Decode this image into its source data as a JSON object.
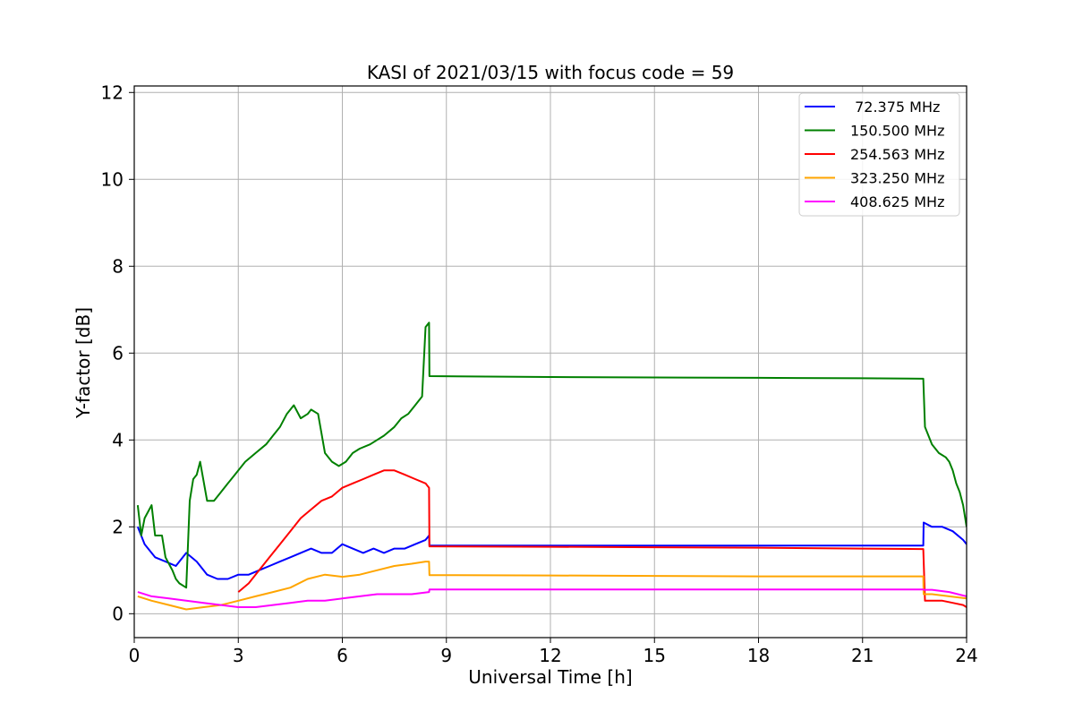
{
  "chart_data": {
    "type": "line",
    "title": "KASI of 2021/03/15 with focus code = 59",
    "xlabel": "Universal Time [h]",
    "ylabel": "Y-factor [dB]",
    "xlim": [
      0,
      24
    ],
    "ylim": [
      -0.55,
      12.15
    ],
    "xticks": [
      0,
      3,
      6,
      9,
      12,
      15,
      18,
      21,
      24
    ],
    "yticks": [
      0,
      2,
      4,
      6,
      8,
      10,
      12
    ],
    "grid": true,
    "legend_position": "top-right",
    "series": [
      {
        "name": " 72.375 MHz",
        "color": "#0000ff",
        "x": [
          0.1,
          0.3,
          0.6,
          0.9,
          1.2,
          1.5,
          1.8,
          2.1,
          2.4,
          2.7,
          3.0,
          3.3,
          3.6,
          3.9,
          4.2,
          4.5,
          4.8,
          5.1,
          5.4,
          5.7,
          6.0,
          6.3,
          6.6,
          6.9,
          7.2,
          7.5,
          7.8,
          8.1,
          8.4,
          8.5,
          8.51,
          12.0,
          15.0,
          18.0,
          21.0,
          22.75,
          22.76,
          23.0,
          23.3,
          23.6,
          23.9,
          24.0
        ],
        "y": [
          2.0,
          1.6,
          1.3,
          1.2,
          1.1,
          1.4,
          1.2,
          0.9,
          0.8,
          0.8,
          0.9,
          0.9,
          1.0,
          1.1,
          1.2,
          1.3,
          1.4,
          1.5,
          1.4,
          1.4,
          1.6,
          1.5,
          1.4,
          1.5,
          1.4,
          1.5,
          1.5,
          1.6,
          1.7,
          1.8,
          1.57,
          1.57,
          1.57,
          1.57,
          1.57,
          1.57,
          2.1,
          2.0,
          2.0,
          1.9,
          1.7,
          1.6
        ]
      },
      {
        "name": "150.500 MHz",
        "color": "#008000",
        "x": [
          0.1,
          0.2,
          0.3,
          0.5,
          0.6,
          0.8,
          0.9,
          1.1,
          1.2,
          1.3,
          1.5,
          1.6,
          1.7,
          1.8,
          1.9,
          2.1,
          2.2,
          2.3,
          2.5,
          2.7,
          2.9,
          3.0,
          3.2,
          3.5,
          3.8,
          4.0,
          4.2,
          4.4,
          4.6,
          4.8,
          5.0,
          5.1,
          5.3,
          5.5,
          5.7,
          5.9,
          6.1,
          6.3,
          6.5,
          6.8,
          7.0,
          7.2,
          7.5,
          7.7,
          7.9,
          8.1,
          8.3,
          8.4,
          8.5,
          8.51,
          12.0,
          15.0,
          18.0,
          21.0,
          22.7,
          22.75,
          22.8,
          23.0,
          23.2,
          23.4,
          23.5,
          23.6,
          23.7,
          23.8,
          23.9,
          24.0
        ],
        "y": [
          2.5,
          1.8,
          2.2,
          2.5,
          1.8,
          1.8,
          1.3,
          1.0,
          0.8,
          0.7,
          0.6,
          2.6,
          3.1,
          3.2,
          3.5,
          2.6,
          2.6,
          2.6,
          2.8,
          3.0,
          3.2,
          3.3,
          3.5,
          3.7,
          3.9,
          4.1,
          4.3,
          4.6,
          4.8,
          4.5,
          4.6,
          4.7,
          4.6,
          3.7,
          3.5,
          3.4,
          3.5,
          3.7,
          3.8,
          3.9,
          4.0,
          4.1,
          4.3,
          4.5,
          4.6,
          4.8,
          5.0,
          6.6,
          6.7,
          5.47,
          5.45,
          5.44,
          5.43,
          5.42,
          5.41,
          5.41,
          4.3,
          3.9,
          3.7,
          3.6,
          3.5,
          3.3,
          3.0,
          2.8,
          2.5,
          2.0
        ]
      },
      {
        "name": "254.563 MHz",
        "color": "#ff0000",
        "x": [
          3.0,
          3.3,
          3.6,
          3.9,
          4.2,
          4.5,
          4.8,
          5.1,
          5.4,
          5.7,
          6.0,
          6.3,
          6.6,
          6.9,
          7.2,
          7.5,
          7.8,
          8.1,
          8.4,
          8.5,
          8.51,
          12.0,
          15.0,
          18.0,
          21.0,
          22.7,
          22.75,
          22.8,
          23.0,
          23.3,
          23.6,
          23.9,
          24.0
        ],
        "y": [
          0.5,
          0.7,
          1.0,
          1.3,
          1.6,
          1.9,
          2.2,
          2.4,
          2.6,
          2.7,
          2.9,
          3.0,
          3.1,
          3.2,
          3.3,
          3.3,
          3.2,
          3.1,
          3.0,
          2.9,
          1.55,
          1.54,
          1.53,
          1.52,
          1.5,
          1.49,
          1.49,
          0.3,
          0.3,
          0.3,
          0.25,
          0.2,
          0.15
        ]
      },
      {
        "name": "323.250 MHz",
        "color": "#ffa500",
        "x": [
          0.1,
          0.5,
          1.0,
          1.5,
          2.0,
          2.5,
          3.0,
          3.5,
          4.0,
          4.5,
          5.0,
          5.5,
          6.0,
          6.5,
          7.0,
          7.5,
          8.0,
          8.4,
          8.5,
          8.51,
          12.0,
          15.0,
          18.0,
          21.0,
          22.75,
          22.76,
          23.0,
          23.5,
          24.0
        ],
        "y": [
          0.4,
          0.3,
          0.2,
          0.1,
          0.15,
          0.2,
          0.3,
          0.4,
          0.5,
          0.6,
          0.8,
          0.9,
          0.85,
          0.9,
          1.0,
          1.1,
          1.15,
          1.2,
          1.2,
          0.89,
          0.88,
          0.87,
          0.86,
          0.86,
          0.86,
          0.45,
          0.45,
          0.4,
          0.35
        ]
      },
      {
        "name": "408.625 MHz",
        "color": "#ff00ff",
        "x": [
          0.1,
          0.5,
          1.0,
          1.5,
          2.0,
          2.5,
          3.0,
          3.5,
          4.0,
          4.5,
          5.0,
          5.5,
          6.0,
          6.5,
          7.0,
          7.5,
          8.0,
          8.5,
          8.51,
          12.0,
          15.0,
          18.0,
          21.0,
          22.75,
          22.76,
          23.0,
          23.5,
          24.0
        ],
        "y": [
          0.5,
          0.4,
          0.35,
          0.3,
          0.25,
          0.2,
          0.15,
          0.15,
          0.2,
          0.25,
          0.3,
          0.3,
          0.35,
          0.4,
          0.45,
          0.45,
          0.45,
          0.5,
          0.56,
          0.56,
          0.56,
          0.56,
          0.56,
          0.56,
          0.55,
          0.55,
          0.5,
          0.4
        ]
      }
    ]
  }
}
